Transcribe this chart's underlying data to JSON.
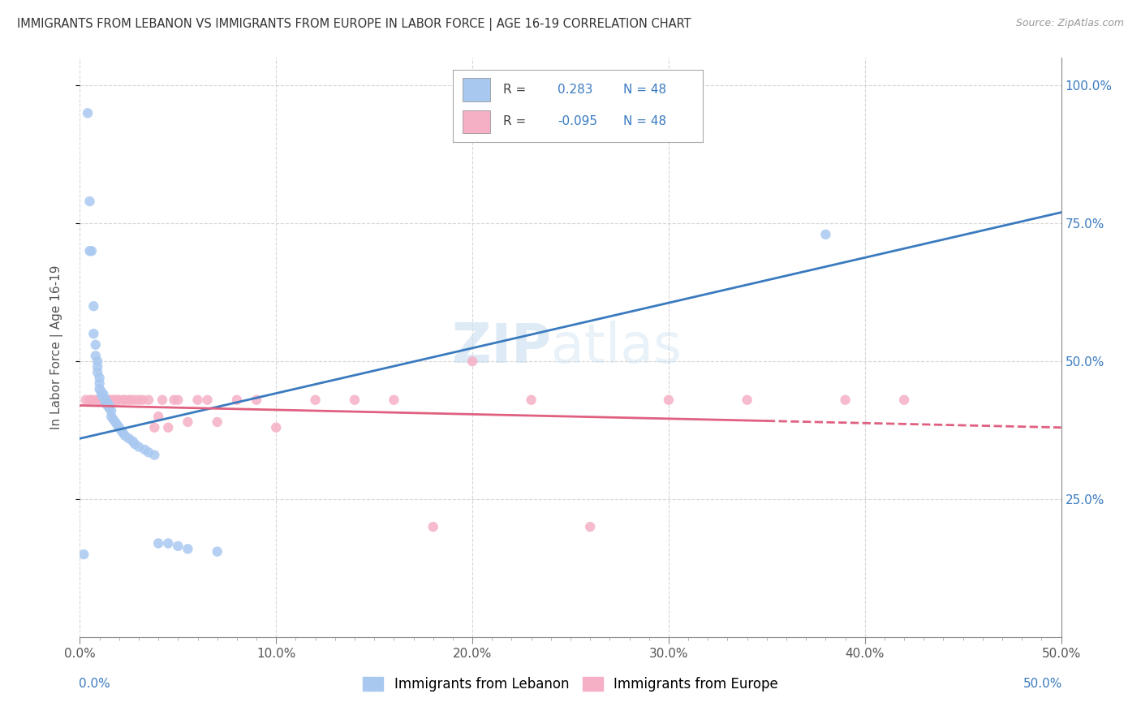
{
  "title": "IMMIGRANTS FROM LEBANON VS IMMIGRANTS FROM EUROPE IN LABOR FORCE | AGE 16-19 CORRELATION CHART",
  "source": "Source: ZipAtlas.com",
  "ylabel": "In Labor Force | Age 16-19",
  "xlim": [
    0.0,
    0.5
  ],
  "ylim": [
    0.0,
    1.05
  ],
  "xticks": [
    0.0,
    0.1,
    0.2,
    0.3,
    0.4,
    0.5
  ],
  "xtick_labels": [
    "0.0%",
    "10.0%",
    "20.0%",
    "30.0%",
    "40.0%",
    "50.0%"
  ],
  "yticks": [
    0.25,
    0.5,
    0.75,
    1.0
  ],
  "ytick_labels": [
    "25.0%",
    "50.0%",
    "75.0%",
    "100.0%"
  ],
  "r_lebanon": 0.283,
  "n_lebanon": 48,
  "r_europe": -0.095,
  "n_europe": 48,
  "color_lebanon": "#a8c8f0",
  "color_europe": "#f5b0c5",
  "line_color_lebanon": "#3a7abf",
  "line_color_europe": "#e06080",
  "watermark": "ZIPatlas",
  "lebanon_x": [
    0.002,
    0.004,
    0.005,
    0.005,
    0.006,
    0.007,
    0.007,
    0.008,
    0.008,
    0.009,
    0.009,
    0.009,
    0.01,
    0.01,
    0.01,
    0.011,
    0.011,
    0.012,
    0.012,
    0.013,
    0.013,
    0.013,
    0.014,
    0.014,
    0.015,
    0.015,
    0.016,
    0.016,
    0.017,
    0.018,
    0.019,
    0.02,
    0.021,
    0.022,
    0.023,
    0.025,
    0.027,
    0.028,
    0.03,
    0.033,
    0.035,
    0.038,
    0.04,
    0.045,
    0.05,
    0.055,
    0.07,
    0.38
  ],
  "lebanon_y": [
    0.15,
    0.95,
    0.79,
    0.7,
    0.7,
    0.6,
    0.55,
    0.53,
    0.51,
    0.5,
    0.49,
    0.48,
    0.47,
    0.46,
    0.45,
    0.445,
    0.44,
    0.44,
    0.435,
    0.43,
    0.43,
    0.425,
    0.425,
    0.42,
    0.42,
    0.415,
    0.41,
    0.4,
    0.395,
    0.39,
    0.385,
    0.38,
    0.375,
    0.37,
    0.365,
    0.36,
    0.355,
    0.35,
    0.345,
    0.34,
    0.335,
    0.33,
    0.17,
    0.17,
    0.165,
    0.16,
    0.155,
    0.73
  ],
  "europe_x": [
    0.003,
    0.005,
    0.006,
    0.008,
    0.01,
    0.01,
    0.011,
    0.012,
    0.013,
    0.014,
    0.015,
    0.016,
    0.017,
    0.018,
    0.019,
    0.02,
    0.022,
    0.023,
    0.025,
    0.026,
    0.028,
    0.03,
    0.032,
    0.035,
    0.038,
    0.04,
    0.042,
    0.045,
    0.048,
    0.05,
    0.055,
    0.06,
    0.065,
    0.07,
    0.08,
    0.09,
    0.1,
    0.12,
    0.14,
    0.16,
    0.18,
    0.2,
    0.23,
    0.26,
    0.3,
    0.34,
    0.39,
    0.42
  ],
  "europe_y": [
    0.43,
    0.43,
    0.43,
    0.43,
    0.43,
    0.43,
    0.43,
    0.43,
    0.43,
    0.43,
    0.43,
    0.43,
    0.43,
    0.43,
    0.43,
    0.43,
    0.43,
    0.43,
    0.43,
    0.43,
    0.43,
    0.43,
    0.43,
    0.43,
    0.38,
    0.4,
    0.43,
    0.38,
    0.43,
    0.43,
    0.39,
    0.43,
    0.43,
    0.39,
    0.43,
    0.43,
    0.38,
    0.43,
    0.43,
    0.43,
    0.2,
    0.5,
    0.43,
    0.2,
    0.43,
    0.43,
    0.43,
    0.43
  ],
  "line_leb_x0": 0.0,
  "line_leb_y0": 0.36,
  "line_leb_x1": 0.5,
  "line_leb_y1": 0.77,
  "line_eur_x0": 0.0,
  "line_eur_y0": 0.42,
  "line_eur_x1": 0.5,
  "line_eur_y1": 0.38
}
